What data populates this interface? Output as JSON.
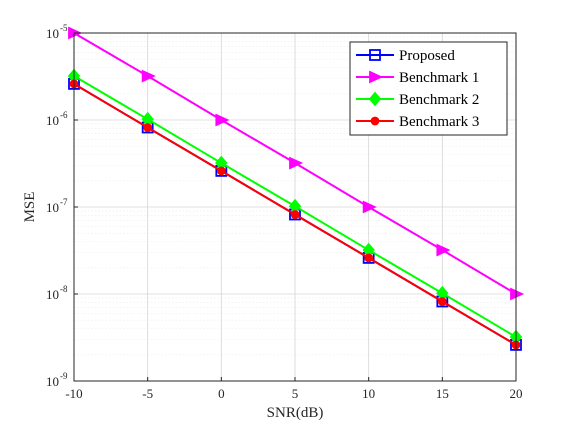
{
  "chart_data": {
    "type": "line",
    "xlabel": "SNR(dB)",
    "ylabel": "MSE",
    "x": [
      -10,
      -5,
      0,
      5,
      10,
      15,
      20
    ],
    "xlim": [
      -10,
      20
    ],
    "xticks": [
      "-10",
      "-5",
      "0",
      "5",
      "10",
      "15",
      "20"
    ],
    "yscale": "log",
    "ylim": [
      1e-09,
      1e-05
    ],
    "yticks": [
      {
        "base": "10",
        "exp": "-9",
        "value": 1e-09
      },
      {
        "base": "10",
        "exp": "-8",
        "value": 1e-08
      },
      {
        "base": "10",
        "exp": "-7",
        "value": 1e-07
      },
      {
        "base": "10",
        "exp": "-6",
        "value": 1e-06
      },
      {
        "base": "10",
        "exp": "-5",
        "value": 1e-05
      }
    ],
    "grid": true,
    "legend_position": "top-right",
    "series": [
      {
        "name": "Proposed",
        "color": "#0000ff",
        "marker": "square",
        "values": [
          2.6e-06,
          8.2e-07,
          2.6e-07,
          8.2e-08,
          2.6e-08,
          8.2e-09,
          2.6e-09
        ]
      },
      {
        "name": "Benchmark 1",
        "color": "#ff00ff",
        "marker": "triangle-right",
        "values": [
          1e-05,
          3.2e-06,
          1e-06,
          3.2e-07,
          1e-07,
          3.2e-08,
          1e-08
        ]
      },
      {
        "name": "Benchmark 2",
        "color": "#00ff00",
        "marker": "diamond",
        "values": [
          3.2e-06,
          1.02e-06,
          3.2e-07,
          1.02e-07,
          3.2e-08,
          1.02e-08,
          3.2e-09
        ]
      },
      {
        "name": "Benchmark 3",
        "color": "#ff0000",
        "marker": "circle",
        "values": [
          2.6e-06,
          8.2e-07,
          2.6e-07,
          8.2e-08,
          2.6e-08,
          8.2e-09,
          2.6e-09
        ]
      }
    ]
  }
}
